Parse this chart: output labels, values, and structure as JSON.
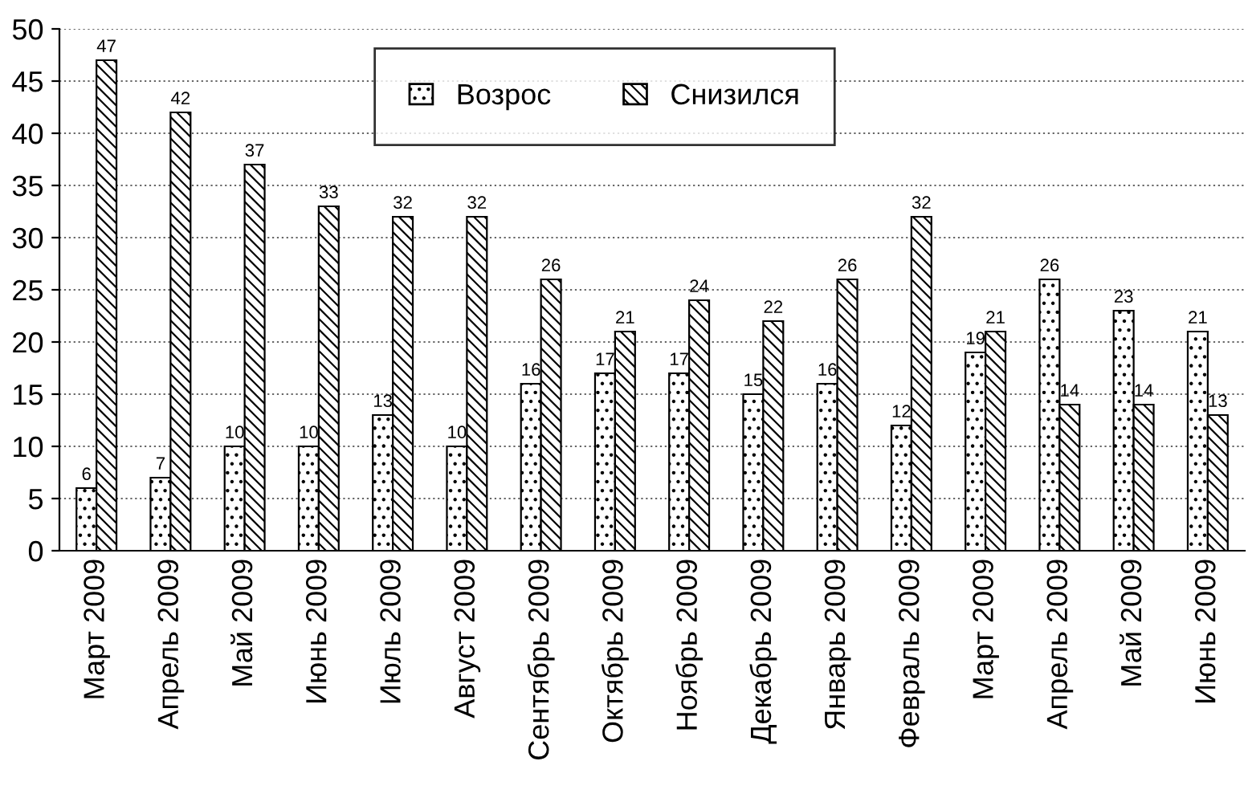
{
  "chart_data": {
    "type": "bar",
    "categories": [
      "Март 2009",
      "Апрель 2009",
      "Май 2009",
      "Июнь 2009",
      "Июль 2009",
      "Август 2009",
      "Сентябрь 2009",
      "Октябрь 2009",
      "Ноябрь 2009",
      "Декабрь 2009",
      "Январь 2009",
      "Февраль 2009",
      "Март 2009",
      "Апрель 2009",
      "Май 2009",
      "Июнь 2009"
    ],
    "series": [
      {
        "name": "Возрос",
        "color": "#000000",
        "values": [
          6,
          7,
          10,
          10,
          13,
          10,
          16,
          17,
          17,
          15,
          16,
          12,
          19,
          26,
          23,
          21
        ]
      },
      {
        "name": "Снизился",
        "color": "#000000",
        "values": [
          47,
          42,
          37,
          33,
          32,
          32,
          26,
          21,
          24,
          22,
          26,
          32,
          21,
          14,
          14,
          13
        ]
      }
    ],
    "ylim": [
      0,
      50
    ],
    "yticks": [
      0,
      5,
      10,
      15,
      20,
      25,
      30,
      35,
      40,
      45,
      50
    ],
    "grid": "y",
    "legend": "top",
    "data_labels": true
  }
}
